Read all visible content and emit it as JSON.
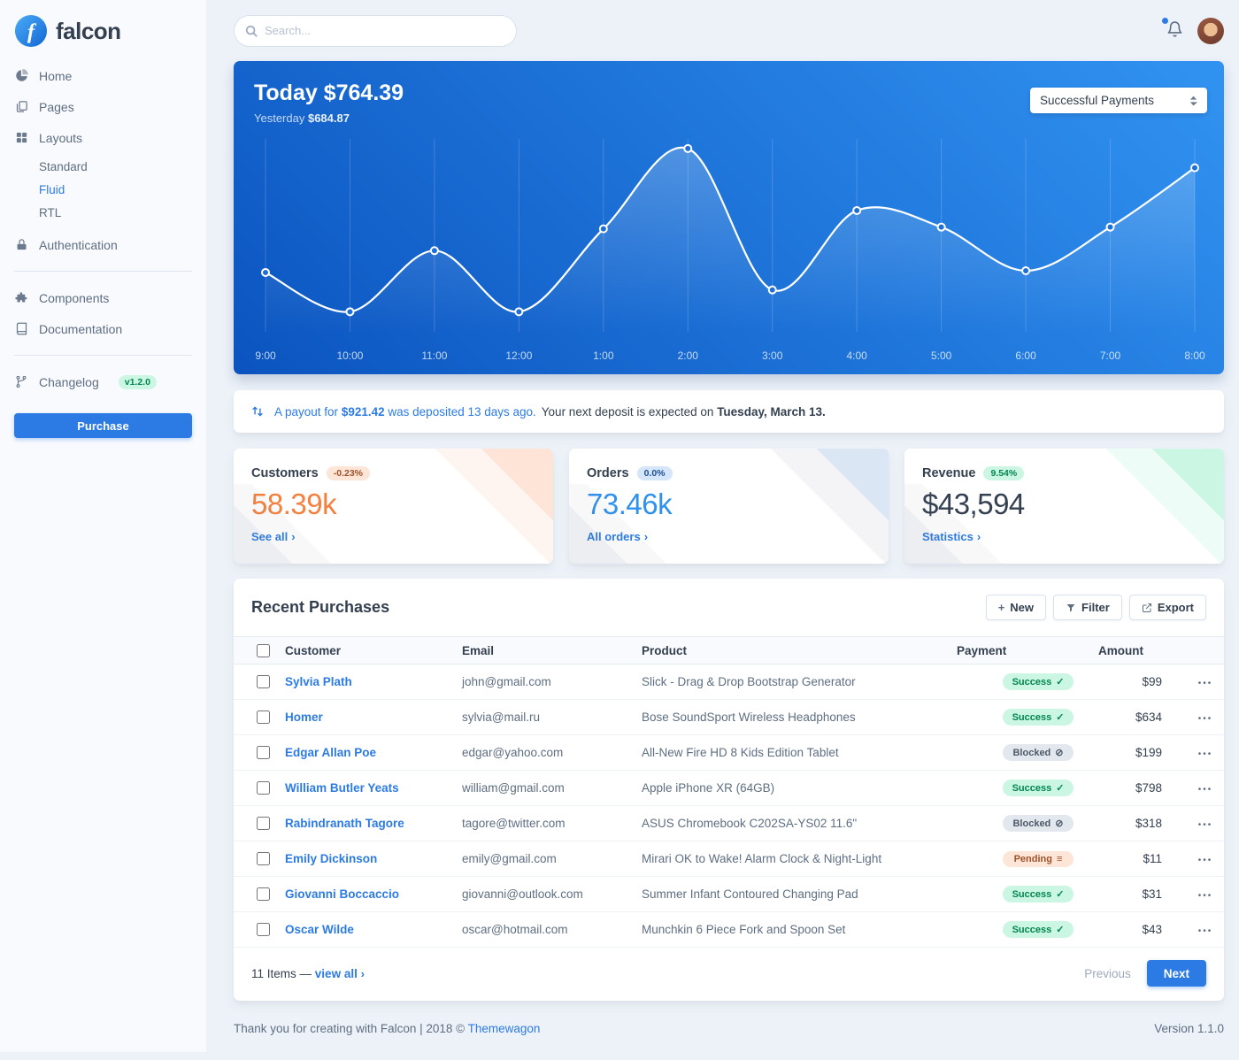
{
  "colors": {
    "primary": "#2c7be5",
    "warning": "#f5803e",
    "success_bg": "#ccf6e4",
    "success_text": "#00864e",
    "blocked_bg": "#e3e8ef",
    "blocked_text": "#4d5969",
    "pending_bg": "#fde6d8",
    "pending_text": "#9d5228",
    "chart_gradient": [
      "#0b54c0",
      "#3193f1"
    ]
  },
  "icons": {
    "dots": "•••",
    "chevron": "›",
    "plus": "+"
  },
  "sidebar": {
    "brand": "falcon",
    "home": "Home",
    "pages": "Pages",
    "layouts": "Layouts",
    "layouts_children": [
      "Standard",
      "Fluid",
      "RTL"
    ],
    "active_item": "Fluid",
    "authentication": "Authentication",
    "components": "Components",
    "documentation": "Documentation",
    "changelog": "Changelog",
    "changelog_badge": "v1.2.0",
    "purchase": "Purchase"
  },
  "topbar": {
    "search_placeholder": "Search..."
  },
  "chart_card": {
    "today_label": "Today",
    "today_value": "$764.39",
    "yesterday_label": "Yesterday",
    "yesterday_value": "$684.87",
    "filter_value": "Successful Payments"
  },
  "chart_data": {
    "type": "line",
    "x": [
      "9:00",
      "10:00",
      "11:00",
      "12:00",
      "1:00",
      "2:00",
      "3:00",
      "4:00",
      "5:00",
      "6:00",
      "7:00",
      "8:00"
    ],
    "series": [
      {
        "name": "Successful Payments",
        "values": [
          68,
          23,
          93,
          23,
          118,
          210,
          48,
          139,
          120,
          70,
          120,
          188
        ]
      }
    ],
    "ylim": [
      0,
      215
    ],
    "grid": "vertical",
    "legend": "none",
    "line_color": "#ffffff"
  },
  "payout": {
    "pre": "A payout for",
    "amount": "$921.42",
    "post": "was deposited 13 days ago.",
    "rest": "Your next deposit is expected on",
    "date": "Tuesday, March 13."
  },
  "stats": [
    {
      "title": "Customers",
      "badge": "-0.23%",
      "value": "58.39k",
      "link": "See all",
      "value_color": "#f5803e"
    },
    {
      "title": "Orders",
      "badge": "0.0%",
      "value": "73.46k",
      "link": "All orders",
      "value_color": "#2e90ef"
    },
    {
      "title": "Revenue",
      "badge": "9.54%",
      "value": "$43,594",
      "link": "Statistics",
      "value_color": "#344050"
    }
  ],
  "table": {
    "title": "Recent Purchases",
    "actions": {
      "new": "New",
      "filter": "Filter",
      "export": "Export"
    },
    "columns": [
      "Customer",
      "Email",
      "Product",
      "Payment",
      "Amount"
    ],
    "status_icons": {
      "success": "✓",
      "blocked": "⊘",
      "pending": "≡"
    },
    "rows": [
      {
        "customer": "Sylvia Plath",
        "email": "john@gmail.com",
        "product": "Slick - Drag & Drop Bootstrap Generator",
        "payment": "Success",
        "payment_status": "success",
        "amount": "$99"
      },
      {
        "customer": "Homer",
        "email": "sylvia@mail.ru",
        "product": "Bose SoundSport Wireless Headphones",
        "payment": "Success",
        "payment_status": "success",
        "amount": "$634"
      },
      {
        "customer": "Edgar Allan Poe",
        "email": "edgar@yahoo.com",
        "product": "All-New Fire HD 8 Kids Edition Tablet",
        "payment": "Blocked",
        "payment_status": "blocked",
        "amount": "$199"
      },
      {
        "customer": "William Butler Yeats",
        "email": "william@gmail.com",
        "product": "Apple iPhone XR (64GB)",
        "payment": "Success",
        "payment_status": "success",
        "amount": "$798"
      },
      {
        "customer": "Rabindranath Tagore",
        "email": "tagore@twitter.com",
        "product": "ASUS Chromebook C202SA-YS02 11.6\"",
        "payment": "Blocked",
        "payment_status": "blocked",
        "amount": "$318"
      },
      {
        "customer": "Emily Dickinson",
        "email": "emily@gmail.com",
        "product": "Mirari OK to Wake! Alarm Clock & Night-Light",
        "payment": "Pending",
        "payment_status": "pending",
        "amount": "$11"
      },
      {
        "customer": "Giovanni Boccaccio",
        "email": "giovanni@outlook.com",
        "product": "Summer Infant Contoured Changing Pad",
        "payment": "Success",
        "payment_status": "success",
        "amount": "$31"
      },
      {
        "customer": "Oscar Wilde",
        "email": "oscar@hotmail.com",
        "product": "Munchkin 6 Piece Fork and Spoon Set",
        "payment": "Success",
        "payment_status": "success",
        "amount": "$43"
      }
    ],
    "footer": {
      "items": "11 Items —",
      "view_all": "view all",
      "previous": "Previous",
      "next": "Next"
    }
  },
  "page_footer": {
    "thanks": "Thank you for creating with Falcon | 2018 ©",
    "brand_link": "Themewagon",
    "version": "Version 1.1.0"
  }
}
